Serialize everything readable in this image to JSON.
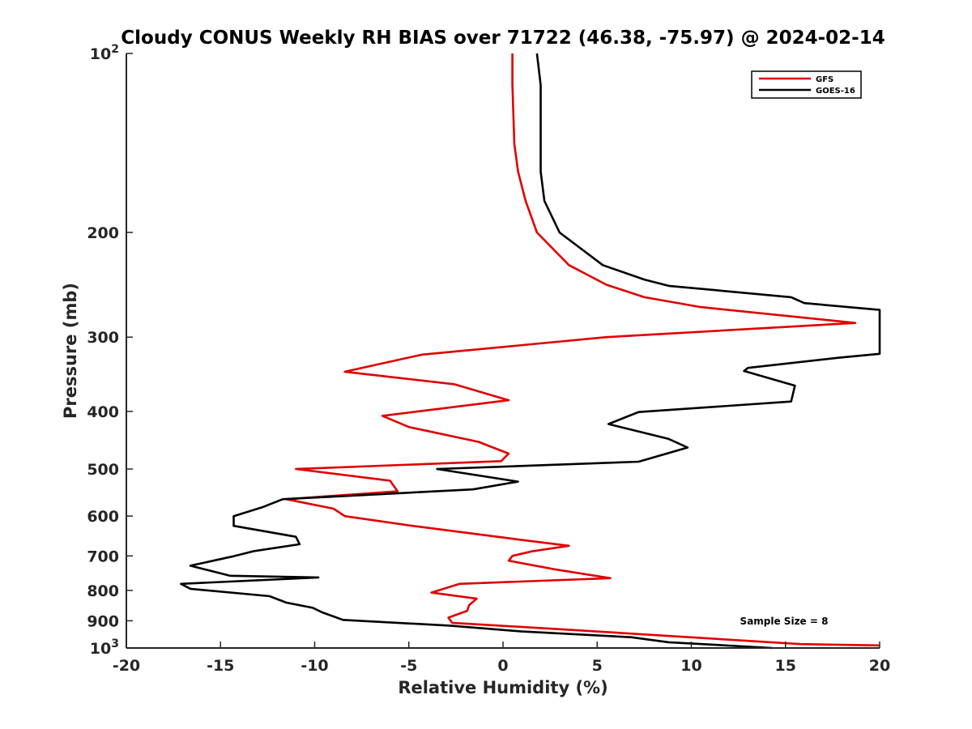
{
  "chart_data": {
    "type": "line",
    "orientation": "vertical-profile",
    "title": "Cloudy CONUS Weekly RH BIAS over 71722 (46.38, -75.97) @ 2024-02-14",
    "xlabel": "Relative Humidity (%)",
    "ylabel": "Pressure (mb)",
    "xlim": [
      -20,
      20
    ],
    "ylim": [
      100,
      1000
    ],
    "yscale": "log",
    "y_reversed": true,
    "x_ticks": [
      "-20",
      "-15",
      "-10",
      "-5",
      "0",
      "5",
      "10",
      "15",
      "20"
    ],
    "y_ticks": [
      {
        "value": 100,
        "label": "10",
        "sup": "2"
      },
      {
        "value": 200,
        "label": "200",
        "sup": ""
      },
      {
        "value": 300,
        "label": "300",
        "sup": ""
      },
      {
        "value": 400,
        "label": "400",
        "sup": ""
      },
      {
        "value": 500,
        "label": "500",
        "sup": ""
      },
      {
        "value": 600,
        "label": "600",
        "sup": ""
      },
      {
        "value": 700,
        "label": "700",
        "sup": ""
      },
      {
        "value": 800,
        "label": "800",
        "sup": ""
      },
      {
        "value": 900,
        "label": "900",
        "sup": ""
      },
      {
        "value": 1000,
        "label": "10",
        "sup": "3"
      }
    ],
    "legend_position": "top-right",
    "annotation": "Sample Size = 8",
    "series": [
      {
        "name": "GFS",
        "color": "#e00000",
        "points": [
          [
            0.5,
            100
          ],
          [
            0.5,
            113
          ],
          [
            0.6,
            142
          ],
          [
            0.8,
            158
          ],
          [
            1.2,
            177
          ],
          [
            1.8,
            200
          ],
          [
            3.5,
            227
          ],
          [
            5.5,
            245
          ],
          [
            7.5,
            257
          ],
          [
            10.5,
            267
          ],
          [
            18.7,
            284
          ],
          [
            5.5,
            300
          ],
          [
            -4.3,
            321
          ],
          [
            -8.4,
            343
          ],
          [
            -2.6,
            360
          ],
          [
            0.3,
            383
          ],
          [
            -6.4,
            407
          ],
          [
            -5.0,
            425
          ],
          [
            -1.3,
            450
          ],
          [
            0.3,
            471
          ],
          [
            -0.1,
            485
          ],
          [
            -11.0,
            500
          ],
          [
            -6.0,
            523
          ],
          [
            -5.6,
            545
          ],
          [
            -11.5,
            562
          ],
          [
            -9.0,
            583
          ],
          [
            -8.4,
            600
          ],
          [
            -4.8,
            623
          ],
          [
            0.5,
            655
          ],
          [
            3.5,
            673
          ],
          [
            1.5,
            688
          ],
          [
            0.5,
            700
          ],
          [
            0.3,
            713
          ],
          [
            2.7,
            737
          ],
          [
            5.7,
            763
          ],
          [
            -2.3,
            780
          ],
          [
            -3.8,
            807
          ],
          [
            -1.4,
            826
          ],
          [
            -1.8,
            847
          ],
          [
            -1.9,
            866
          ],
          [
            -2.9,
            889
          ],
          [
            -2.7,
            907
          ],
          [
            4.0,
            934
          ],
          [
            15.8,
            985
          ],
          [
            20.0,
            990
          ]
        ]
      },
      {
        "name": "GOES-16",
        "color": "#000000",
        "points": [
          [
            1.8,
            100
          ],
          [
            2.0,
            113
          ],
          [
            2.0,
            142
          ],
          [
            2.0,
            158
          ],
          [
            2.2,
            177
          ],
          [
            3.0,
            200
          ],
          [
            5.3,
            227
          ],
          [
            7.5,
            240
          ],
          [
            8.8,
            246
          ],
          [
            15.3,
            257
          ],
          [
            16.0,
            263
          ],
          [
            20.0,
            270
          ],
          [
            20.0,
            320
          ],
          [
            17.8,
            325
          ],
          [
            13.0,
            338
          ],
          [
            12.8,
            342
          ],
          [
            15.5,
            362
          ],
          [
            15.3,
            385
          ],
          [
            7.2,
            401
          ],
          [
            5.6,
            420
          ],
          [
            8.8,
            445
          ],
          [
            9.8,
            460
          ],
          [
            7.2,
            486
          ],
          [
            -3.5,
            500
          ],
          [
            0.8,
            525
          ],
          [
            -1.6,
            541
          ],
          [
            -11.7,
            562
          ],
          [
            -12.8,
            580
          ],
          [
            -14.3,
            600
          ],
          [
            -14.3,
            623
          ],
          [
            -11.0,
            650
          ],
          [
            -10.8,
            669
          ],
          [
            -13.2,
            687
          ],
          [
            -14.4,
            702
          ],
          [
            -16.6,
            727
          ],
          [
            -14.5,
            756
          ],
          [
            -9.8,
            761
          ],
          [
            -17.1,
            780
          ],
          [
            -16.6,
            795
          ],
          [
            -12.4,
            818
          ],
          [
            -11.5,
            839
          ],
          [
            -10.1,
            856
          ],
          [
            -9.6,
            871
          ],
          [
            -8.5,
            897
          ],
          [
            -2.8,
            917
          ],
          [
            1.0,
            938
          ],
          [
            6.8,
            959
          ],
          [
            8.8,
            978
          ],
          [
            14.3,
            1000
          ]
        ]
      }
    ]
  }
}
